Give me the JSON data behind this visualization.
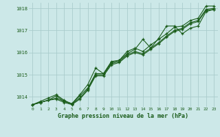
{
  "title": "Graphe pression niveau de la mer (hPa)",
  "bg_color": "#cce8e8",
  "grid_color": "#aacccc",
  "line_color": "#1a5c1a",
  "marker_color": "#1a5c1a",
  "xlim": [
    -0.5,
    23.5
  ],
  "ylim": [
    1013.55,
    1018.25
  ],
  "yticks": [
    1014,
    1015,
    1016,
    1017,
    1018
  ],
  "xticks": [
    0,
    1,
    2,
    3,
    4,
    5,
    6,
    7,
    8,
    9,
    10,
    11,
    12,
    13,
    14,
    15,
    16,
    17,
    18,
    19,
    20,
    21,
    22,
    23
  ],
  "series": [
    [
      1013.65,
      1013.75,
      1013.85,
      1014.05,
      1013.8,
      1013.7,
      1014.1,
      1014.55,
      1015.3,
      1015.05,
      1015.6,
      1015.65,
      1016.05,
      1016.2,
      1016.05,
      1016.35,
      1016.6,
      1016.85,
      1017.15,
      1017.2,
      1017.45,
      1017.55,
      1018.1,
      1018.1
    ],
    [
      1013.65,
      1013.75,
      1013.85,
      1013.95,
      1013.8,
      1013.68,
      1013.95,
      1014.35,
      1015.0,
      1015.0,
      1015.5,
      1015.6,
      1015.9,
      1016.05,
      1015.95,
      1016.2,
      1016.45,
      1016.75,
      1017.0,
      1017.1,
      1017.35,
      1017.45,
      1017.95,
      1018.0
    ],
    [
      1013.65,
      1013.75,
      1013.85,
      1013.9,
      1013.75,
      1013.65,
      1013.9,
      1014.3,
      1014.95,
      1014.95,
      1015.45,
      1015.55,
      1015.85,
      1016.0,
      1015.9,
      1016.15,
      1016.4,
      1016.7,
      1016.95,
      1017.05,
      1017.3,
      1017.4,
      1017.9,
      1017.95
    ],
    [
      1013.65,
      1013.8,
      1013.95,
      1014.1,
      1013.85,
      1013.68,
      1014.05,
      1014.4,
      1015.05,
      1015.05,
      1015.55,
      1015.65,
      1015.95,
      1016.15,
      1016.6,
      1016.2,
      1016.65,
      1017.2,
      1017.2,
      1016.85,
      1017.1,
      1017.2,
      1017.85,
      1017.95
    ]
  ]
}
